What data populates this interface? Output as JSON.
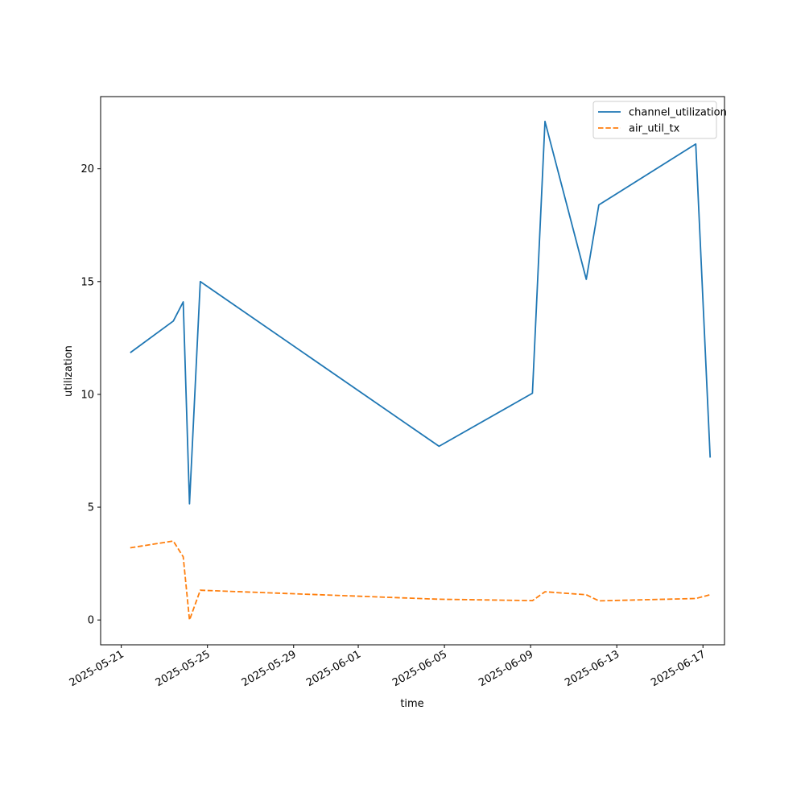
{
  "chart_data": {
    "type": "line",
    "xlabel": "time",
    "ylabel": "utilization",
    "x_axis_type": "date",
    "xlim": [
      "2025-05-20T01:00",
      "2025-06-18T00:00"
    ],
    "ylim": [
      -1.1,
      23.2
    ],
    "x_ticks": [
      "2025-05-21",
      "2025-05-25",
      "2025-05-29",
      "2025-06-01",
      "2025-06-05",
      "2025-06-09",
      "2025-06-13",
      "2025-06-17"
    ],
    "y_ticks": [
      0,
      5,
      10,
      15,
      20
    ],
    "grid": false,
    "legend_position": "top-right",
    "x": [
      "2025-05-21T10:00",
      "2025-05-23T10:00",
      "2025-05-23T21:00",
      "2025-05-24T04:00",
      "2025-05-24T16:00",
      "2025-06-04T18:00",
      "2025-06-09T02:00",
      "2025-06-09T16:00",
      "2025-06-11T14:00",
      "2025-06-12T04:00",
      "2025-06-16T16:00",
      "2025-06-17T08:00"
    ],
    "series": [
      {
        "name": "channel_utilization",
        "color": "#1f77b4",
        "style": "solid",
        "values": [
          11.85,
          13.25,
          14.1,
          5.15,
          15.0,
          7.7,
          10.05,
          22.1,
          15.1,
          18.4,
          21.1,
          7.2
        ]
      },
      {
        "name": "air_util_tx",
        "color": "#ff7f0e",
        "style": "dashed",
        "values": [
          3.2,
          3.5,
          2.8,
          0.0,
          1.32,
          0.92,
          0.86,
          1.25,
          1.12,
          0.85,
          0.95,
          1.12
        ]
      }
    ]
  }
}
